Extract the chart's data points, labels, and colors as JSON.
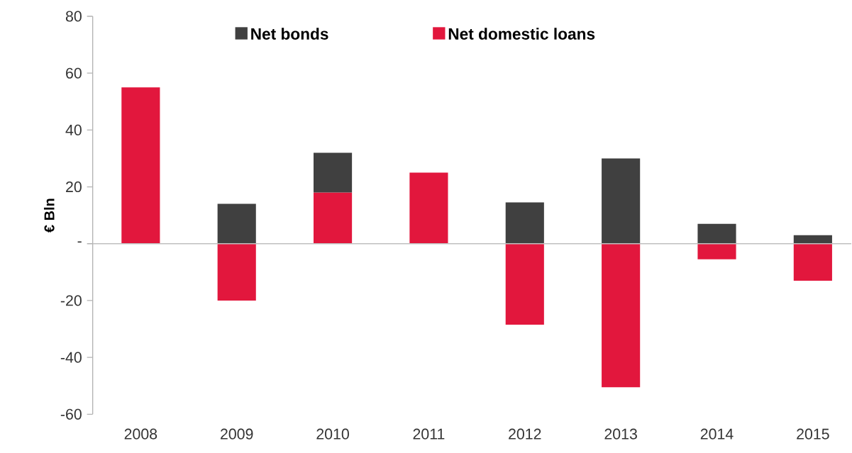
{
  "chart_data": {
    "type": "bar",
    "stacked": true,
    "ylabel": "€ Bln",
    "categories": [
      "2008",
      "2009",
      "2010",
      "2011",
      "2012",
      "2013",
      "2014",
      "2015"
    ],
    "series": [
      {
        "name": "Net domestic loans",
        "color": "#e2173d",
        "values": [
          55,
          -20,
          18,
          25,
          -28.5,
          -50.5,
          -5.5,
          -13
        ]
      },
      {
        "name": "Net bonds",
        "color": "#404040",
        "values": [
          null,
          14,
          14,
          null,
          14.5,
          30,
          7,
          3
        ]
      }
    ],
    "ylim": [
      -60,
      80
    ],
    "yticks": [
      -60,
      -40,
      -20,
      {
        "value": 0,
        "label": "-"
      },
      20,
      40,
      60,
      80
    ],
    "legend": "top"
  }
}
